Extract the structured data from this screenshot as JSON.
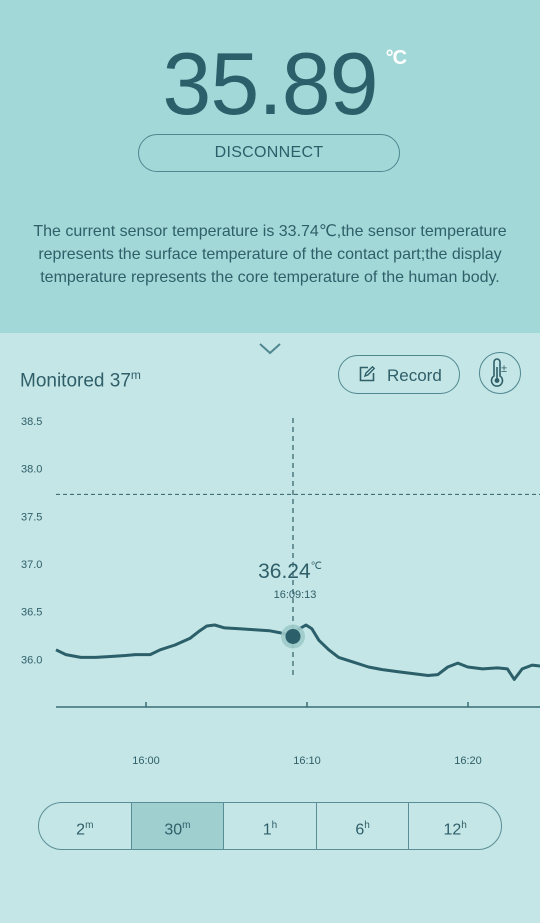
{
  "display": {
    "temperature": "35.89",
    "unit": "°C",
    "disconnect_label": "DISCONNECT",
    "description": "The current sensor temperature is 33.74℃,the sensor temperature represents the surface temperature of the contact part;the display temperature represents the core temperature of the human body."
  },
  "monitor": {
    "label": "Monitored 37",
    "unit": "m",
    "record_label": "Record"
  },
  "icons": {
    "collapse": "chevron-down-icon",
    "record": "edit-icon",
    "calibrate": "thermometer-plus-minus-icon"
  },
  "chart_data": {
    "type": "line",
    "y_ticks": [
      "38.5",
      "38.0",
      "37.5",
      "37.0",
      "36.5",
      "36.0"
    ],
    "x_ticks": [
      "16:00",
      "16:10",
      "16:20"
    ],
    "ylim": [
      35.5,
      38.5
    ],
    "threshold": 37.73,
    "cursor": {
      "value": "36.24",
      "unit": "℃",
      "time": "16:09:13"
    },
    "series": [
      {
        "values": [
          [
            0,
            36.1
          ],
          [
            1,
            36.05
          ],
          [
            2.5,
            36.02
          ],
          [
            4,
            36.02
          ],
          [
            5.5,
            36.03
          ],
          [
            7,
            36.04
          ],
          [
            8,
            36.05
          ],
          [
            9.5,
            36.05
          ],
          [
            10.5,
            36.1
          ],
          [
            12,
            36.15
          ],
          [
            13.5,
            36.22
          ],
          [
            14.5,
            36.3
          ],
          [
            15.2,
            36.35
          ],
          [
            16,
            36.36
          ],
          [
            17,
            36.33
          ],
          [
            18.5,
            36.32
          ],
          [
            20,
            36.31
          ],
          [
            21.5,
            36.3
          ],
          [
            22.5,
            36.28
          ],
          [
            23.3,
            36.26
          ],
          [
            24.2,
            36.3
          ],
          [
            25.2,
            36.36
          ],
          [
            25.8,
            36.32
          ],
          [
            26.5,
            36.2
          ],
          [
            27.5,
            36.1
          ],
          [
            28.5,
            36.02
          ],
          [
            30,
            35.97
          ],
          [
            31.5,
            35.92
          ],
          [
            33,
            35.89
          ],
          [
            34.5,
            35.87
          ],
          [
            36,
            35.85
          ],
          [
            37.5,
            35.83
          ],
          [
            38.5,
            35.84
          ],
          [
            39.5,
            35.92
          ],
          [
            40.5,
            35.96
          ],
          [
            41.5,
            35.92
          ],
          [
            43,
            35.9
          ],
          [
            44.5,
            35.91
          ],
          [
            45.5,
            35.9
          ],
          [
            46.2,
            35.79
          ],
          [
            47,
            35.9
          ],
          [
            48,
            35.94
          ],
          [
            48.8,
            35.93
          ]
        ]
      }
    ]
  },
  "tabs": [
    {
      "label": "2",
      "unit": "m",
      "active": false
    },
    {
      "label": "30",
      "unit": "m",
      "active": true
    },
    {
      "label": "1",
      "unit": "h",
      "active": false
    },
    {
      "label": "6",
      "unit": "h",
      "active": false
    },
    {
      "label": "12",
      "unit": "h",
      "active": false
    }
  ]
}
